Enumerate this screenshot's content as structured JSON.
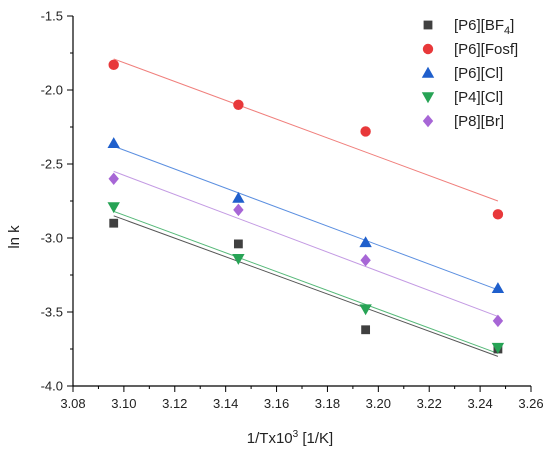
{
  "chart_data": {
    "type": "scatter",
    "xlabel": "1/Tx10",
    "xlabel_sup": "3",
    "xlabel_tail": " [1/K]",
    "ylabel": "ln k",
    "xlim": [
      3.08,
      3.26
    ],
    "ylim": [
      -4.0,
      -1.5
    ],
    "x_ticks": [
      "3.08",
      "3.10",
      "3.12",
      "3.14",
      "3.16",
      "3.18",
      "3.20",
      "3.22",
      "3.24",
      "3.26"
    ],
    "y_ticks": [
      "-1.5",
      "-2.0",
      "-2.5",
      "-3.0",
      "-3.5",
      "-4.0"
    ],
    "grid": false,
    "legend_position": "top-right",
    "series": [
      {
        "name": "[P6][BF",
        "name_sub": "4",
        "name_tail": "]",
        "marker": "square",
        "color": "#404040",
        "line_color": "#555555",
        "x": [
          3.096,
          3.145,
          3.195,
          3.247
        ],
        "y": [
          -2.9,
          -3.04,
          -3.62,
          -3.75
        ],
        "fit": [
          [
            3.096,
            -2.85
          ],
          [
            3.247,
            -3.8
          ]
        ]
      },
      {
        "name": "[P6][Fosf]",
        "marker": "circle",
        "color": "#e8383a",
        "line_color": "#f07f7c",
        "x": [
          3.096,
          3.145,
          3.195,
          3.247
        ],
        "y": [
          -1.83,
          -2.1,
          -2.28,
          -2.84
        ],
        "fit": [
          [
            3.096,
            -1.79
          ],
          [
            3.247,
            -2.75
          ]
        ]
      },
      {
        "name": "[P6][Cl]",
        "marker": "triangle-up",
        "color": "#1f5fcc",
        "line_color": "#5b8fe0",
        "x": [
          3.096,
          3.145,
          3.195,
          3.247
        ],
        "y": [
          -2.36,
          -2.73,
          -3.03,
          -3.34
        ],
        "fit": [
          [
            3.096,
            -2.38
          ],
          [
            3.247,
            -3.35
          ]
        ]
      },
      {
        "name": "[P4][Cl]",
        "marker": "triangle-down",
        "color": "#27a355",
        "line_color": "#55b878",
        "x": [
          3.096,
          3.145,
          3.195,
          3.247
        ],
        "y": [
          -2.79,
          -3.14,
          -3.48,
          -3.74
        ],
        "fit": [
          [
            3.096,
            -2.82
          ],
          [
            3.247,
            -3.78
          ]
        ]
      },
      {
        "name": "[P8][Br]",
        "marker": "diamond",
        "color": "#a766d6",
        "line_color": "#c39ae3",
        "x": [
          3.096,
          3.145,
          3.195,
          3.247
        ],
        "y": [
          -2.6,
          -2.81,
          -3.15,
          -3.56
        ],
        "fit": [
          [
            3.096,
            -2.55
          ],
          [
            3.247,
            -3.53
          ]
        ]
      }
    ]
  }
}
